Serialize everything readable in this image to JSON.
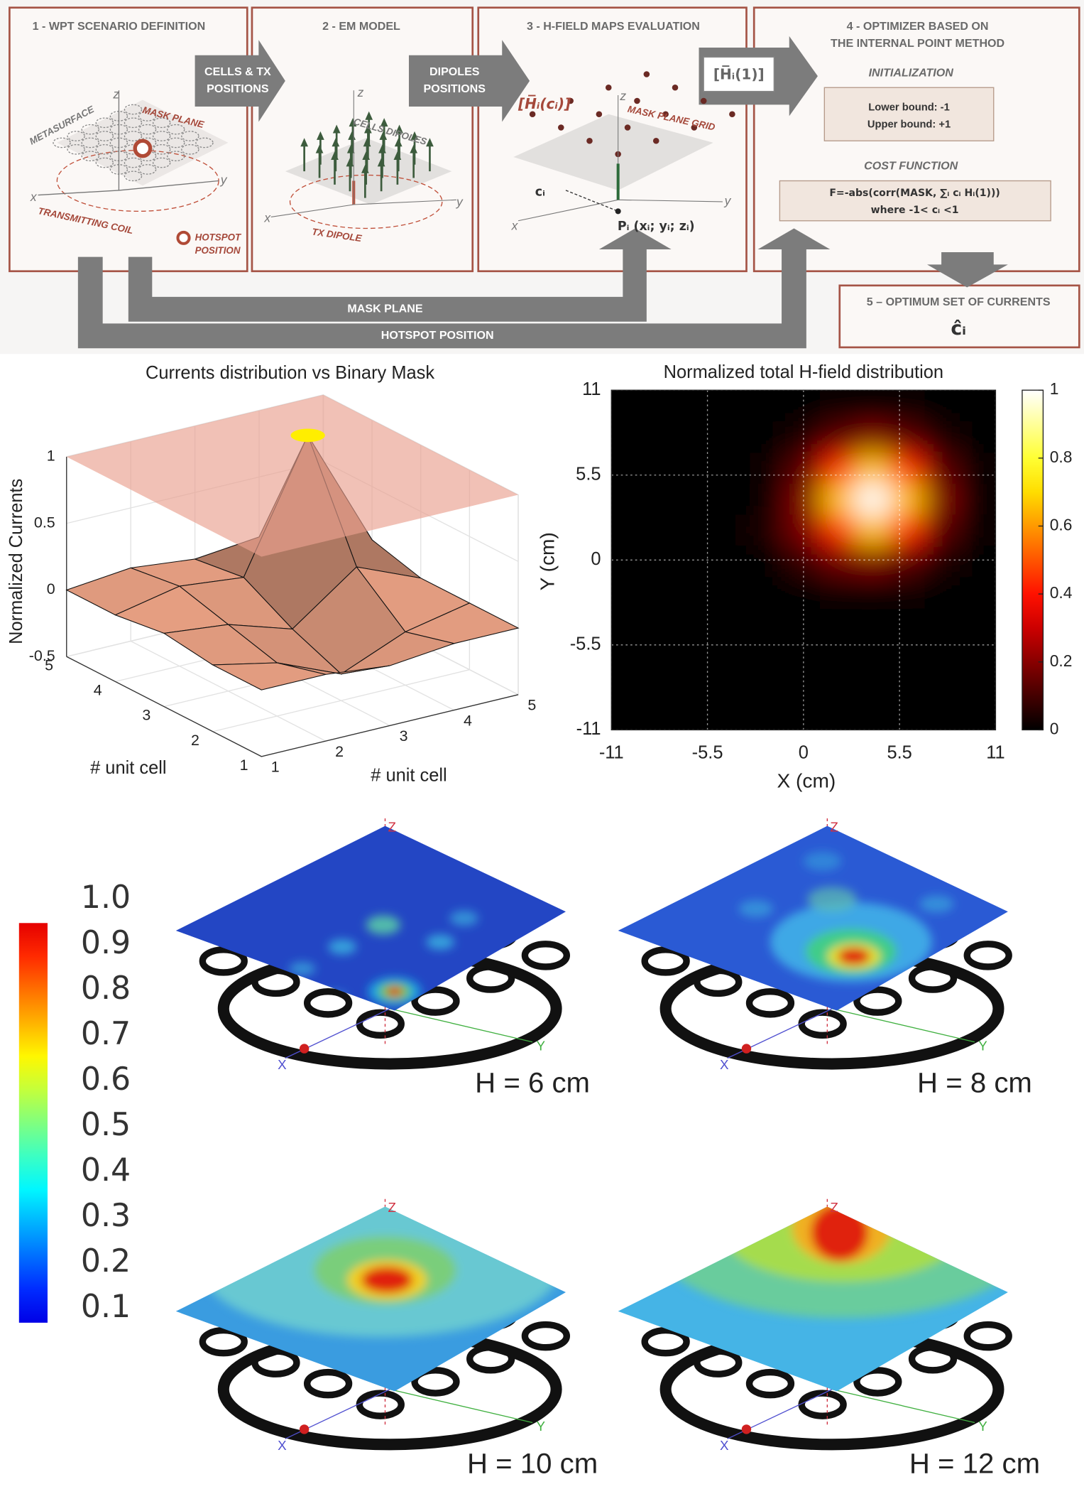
{
  "diagram": {
    "axes": [
      "z",
      "x",
      "y"
    ],
    "box1": {
      "title": "1 - WPT SCENARIO DEFINITION",
      "mask_plane": "MASK PLANE",
      "metasurface": "METASURFACE",
      "coil": "TRANSMITTING COIL",
      "hotspot": [
        "HOTSPOT",
        "POSITION"
      ]
    },
    "box2": {
      "title": "2 - EM MODEL",
      "cells": "CELLS DIPOLES",
      "tx": "TX DIPOLE"
    },
    "box3": {
      "title": "3 - H-FIELD MAPS EVALUATION",
      "field": "[H̅ᵢ(cᵢ)]",
      "grid": "MASK PLANE GRID",
      "ci": "cᵢ",
      "point": "Pᵢ (xᵢ; yᵢ; zᵢ)"
    },
    "box4": {
      "title": [
        "4 - OPTIMIZER BASED ON",
        "THE INTERNAL POINT METHOD"
      ],
      "init": "INITIALIZATION",
      "bounds": [
        "Lower bound: -1",
        "Upper bound: +1"
      ],
      "cost": "COST FUNCTION",
      "formula": [
        "F=-abs(corr(MASK, ∑ᵢ cᵢ Hᵢ(1)))",
        "where -1< cᵢ <1"
      ]
    },
    "box5": {
      "title": "5 – OPTIMUM SET OF CURRENTS",
      "result": "ĉᵢ"
    },
    "arrows": {
      "cells_tx": [
        "CELLS & TX",
        "POSITIONS"
      ],
      "dipoles": [
        "DIPOLES",
        "POSITIONS"
      ],
      "field_unit": "[H̅ᵢ(1)]",
      "mask_plane": "MASK PLANE",
      "hotspot": "HOTSPOT POSITION"
    }
  },
  "chart_data": [
    {
      "type": "surface3d",
      "title": "Currents distribution vs Binary Mask",
      "zlabel": "Normalized Currents",
      "xlabel": "# unit cell",
      "ylabel": "# unit cell",
      "x": [
        1,
        2,
        3,
        4,
        5
      ],
      "y": [
        1,
        2,
        3,
        4,
        5
      ],
      "values": [
        [
          0,
          0,
          -0.05,
          0,
          0
        ],
        [
          0,
          -0.1,
          -0.3,
          -0.1,
          0
        ],
        [
          0.05,
          0,
          -0.15,
          0.2,
          0
        ],
        [
          0,
          0.1,
          0.05,
          1,
          0.1
        ],
        [
          0,
          0.05,
          0,
          0.05,
          0
        ]
      ],
      "mask_level": 1,
      "color": "#e8a083",
      "mask_color": "#e9a08f",
      "xlim": [
        1,
        5
      ],
      "ylim": [
        1,
        5
      ],
      "zlim": [
        -0.5,
        1
      ],
      "xticks": [
        1,
        2,
        3,
        4,
        5
      ],
      "yticks": [
        1,
        2,
        3,
        4,
        5
      ],
      "zticks": [
        -0.5,
        0,
        0.5,
        1
      ],
      "grid": true
    },
    {
      "type": "heatmap",
      "title": "Normalized total H-field distribution",
      "xlabel": "X (cm)",
      "ylabel": "Y (cm)",
      "x": [
        -10,
        -8,
        -6,
        -4,
        -2,
        0,
        2,
        4,
        6,
        8,
        10
      ],
      "y": [
        -10,
        -8,
        -6,
        -4,
        -2,
        0,
        2,
        4,
        6,
        8,
        10
      ],
      "values": [
        [
          0,
          0,
          0,
          0,
          0,
          0,
          0,
          0,
          0,
          0,
          0
        ],
        [
          0,
          0,
          0,
          0,
          0,
          0,
          0,
          0,
          0,
          0,
          0
        ],
        [
          0,
          0,
          0,
          0,
          0,
          0,
          0,
          0,
          0,
          0,
          0
        ],
        [
          0,
          0,
          0,
          0,
          0,
          0,
          0,
          0,
          0,
          0,
          0
        ],
        [
          0,
          0,
          0,
          0,
          0,
          0,
          0.02,
          0.02,
          0.02,
          0,
          0
        ],
        [
          0,
          0,
          0,
          0,
          0,
          0.08,
          0.16,
          0.19,
          0.13,
          0.04,
          0
        ],
        [
          0,
          0,
          0,
          0,
          0.05,
          0.18,
          0.44,
          0.66,
          0.44,
          0.13,
          0.02
        ],
        [
          0,
          0,
          0,
          0,
          0.02,
          0.19,
          0.66,
          1,
          0.66,
          0.19,
          0.02
        ],
        [
          0,
          0,
          0,
          0,
          0.02,
          0.13,
          0.44,
          0.66,
          0.44,
          0.13,
          0.02
        ],
        [
          0,
          0,
          0,
          0,
          0,
          0.04,
          0.13,
          0.19,
          0.13,
          0.04,
          0
        ],
        [
          0,
          0,
          0,
          0,
          0,
          0,
          0.02,
          0.02,
          0.02,
          0,
          0
        ]
      ],
      "xlim": [
        -11,
        11
      ],
      "ylim": [
        -11,
        11
      ],
      "xticks": [
        -11,
        -5.5,
        0,
        5.5,
        11
      ],
      "yticks": [
        -11,
        -5.5,
        0,
        5.5,
        11
      ],
      "clim": [
        0,
        1
      ],
      "cticks": [
        0,
        0.2,
        0.4,
        0.6,
        0.8,
        1
      ],
      "colormap": "hot",
      "grid": true
    }
  ],
  "field_maps": {
    "colorbar": {
      "lim": [
        0.1,
        1
      ],
      "colormap": "jet",
      "ticks": [
        {
          "value": 1,
          "label": "1.0"
        },
        0.9,
        0.8,
        0.7,
        0.6,
        0.5,
        0.4,
        0.3,
        0.2,
        0.1
      ]
    },
    "axis_labels": [
      "Z",
      "X",
      "Y"
    ],
    "panels": [
      {
        "label": "H = 6 cm"
      },
      {
        "label": "H = 8 cm"
      },
      {
        "label": "H = 10 cm"
      },
      {
        "label": "H = 12 cm"
      }
    ]
  }
}
